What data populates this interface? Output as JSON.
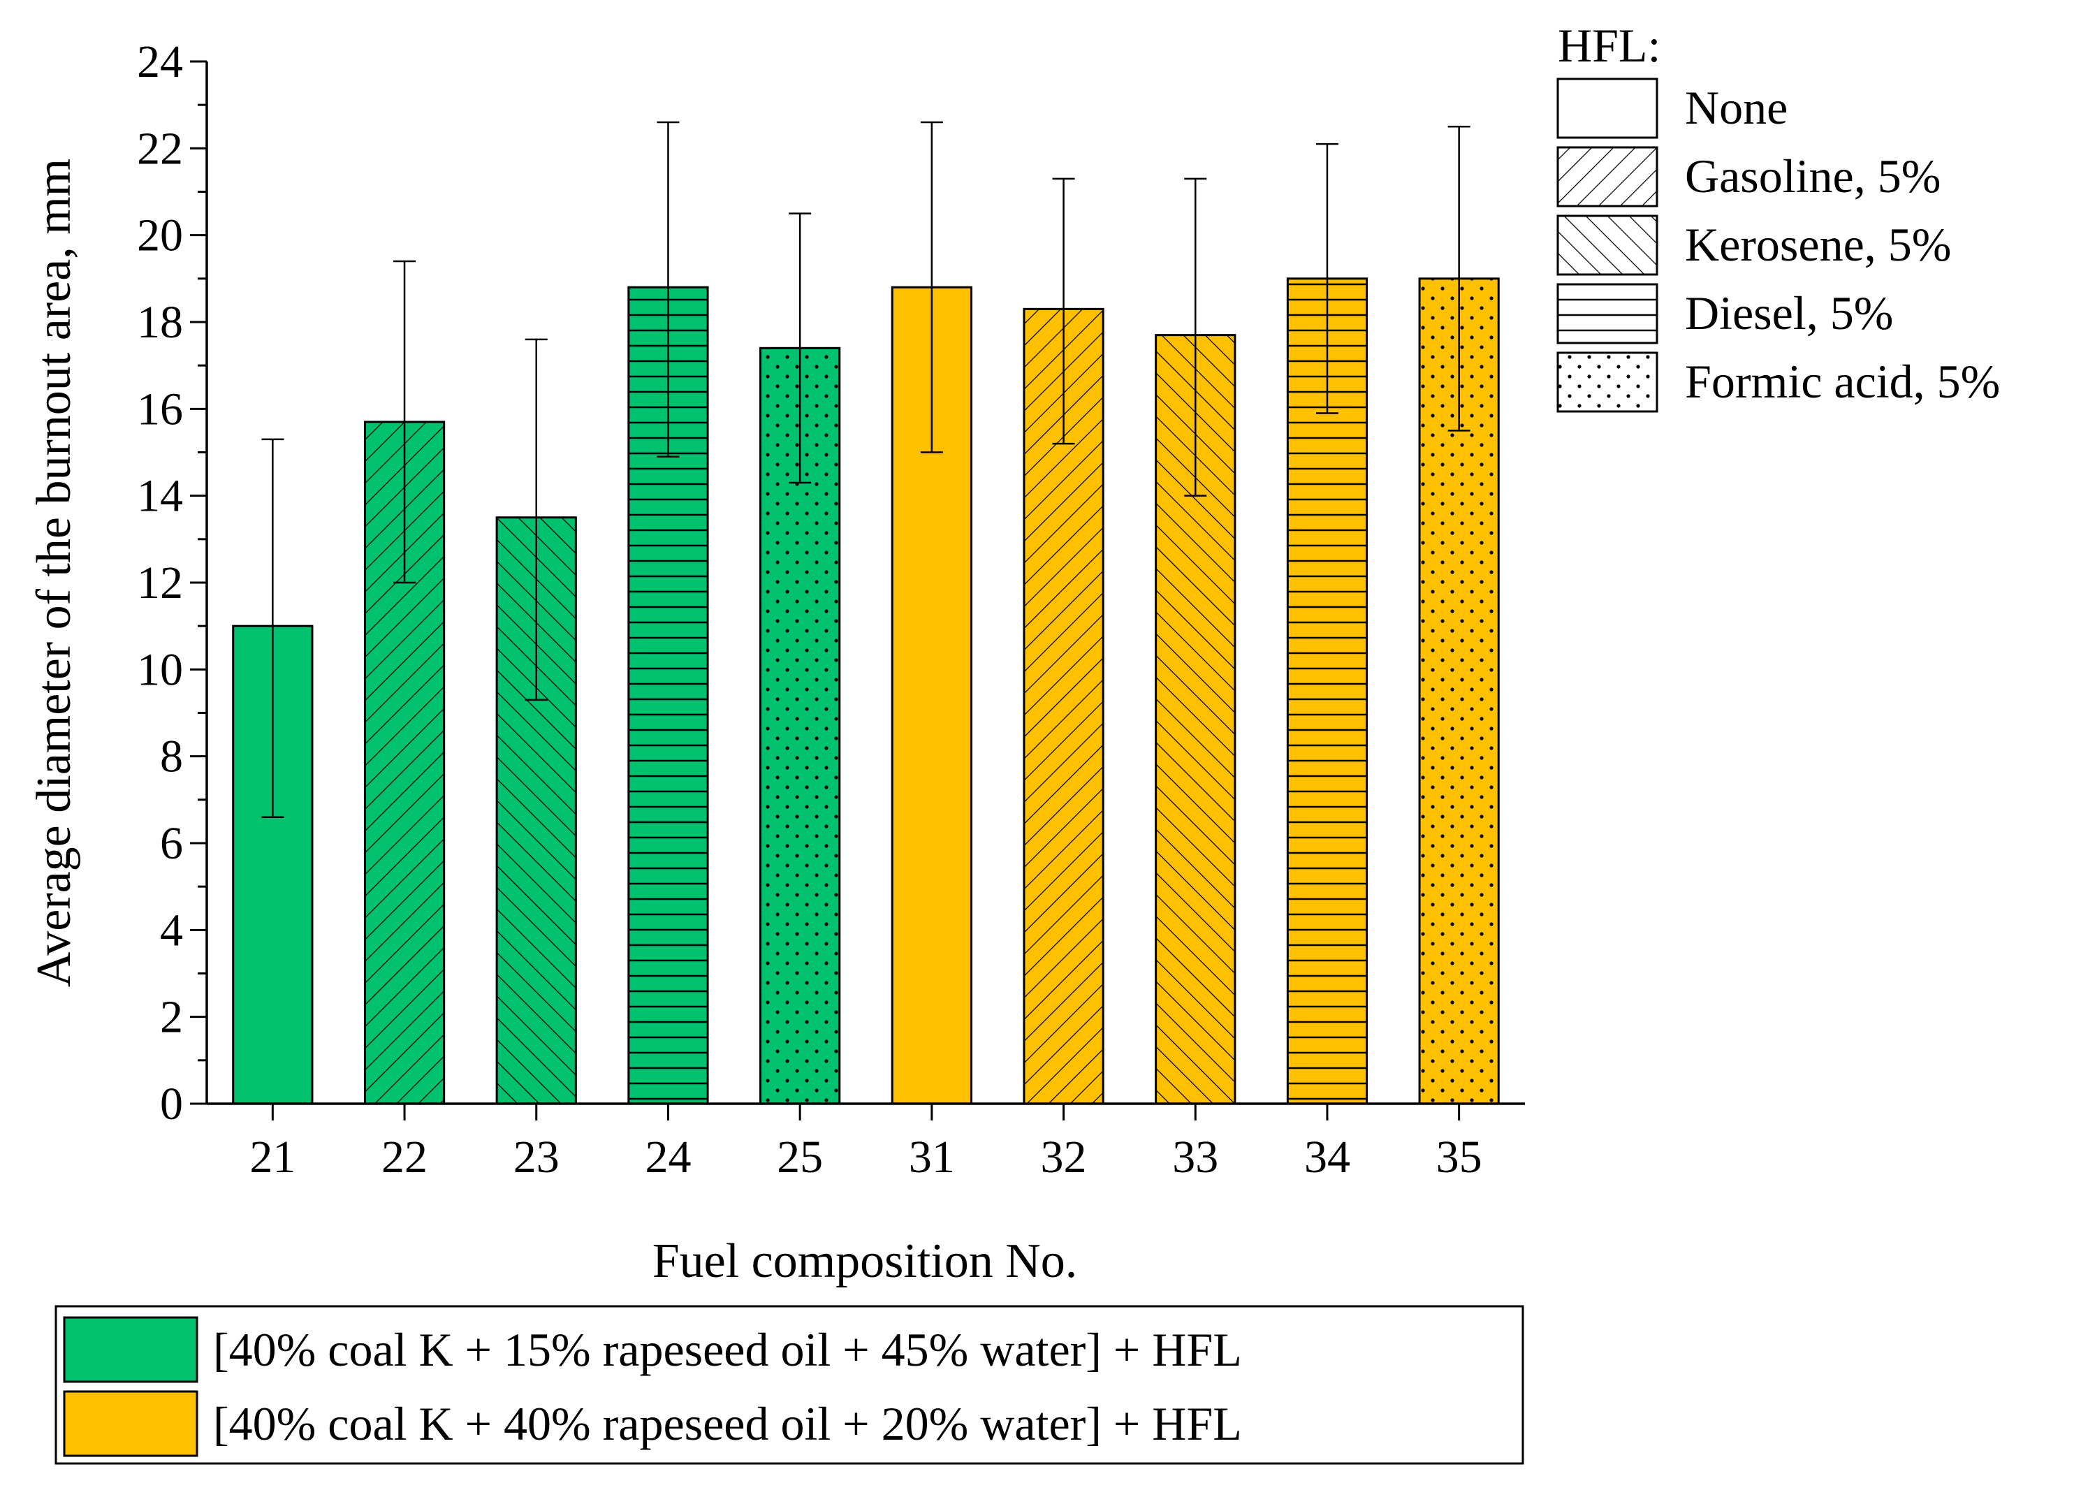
{
  "chart_data": {
    "type": "bar",
    "xlabel": "Fuel composition No.",
    "ylabel": "Average diameter of the burnout area, mm",
    "ylim": [
      0,
      24
    ],
    "yticks": [
      0,
      2,
      4,
      6,
      8,
      10,
      12,
      14,
      16,
      18,
      20,
      22,
      24
    ],
    "categories": [
      "21",
      "22",
      "23",
      "24",
      "25",
      "31",
      "32",
      "33",
      "34",
      "35"
    ],
    "values": [
      11.0,
      15.7,
      13.5,
      18.8,
      17.4,
      18.8,
      18.3,
      17.7,
      19.0,
      19.0
    ],
    "err_low": [
      6.6,
      12.0,
      9.3,
      14.9,
      14.3,
      15.0,
      15.2,
      14.0,
      15.9,
      15.5
    ],
    "err_high": [
      15.3,
      19.4,
      17.6,
      22.6,
      20.5,
      22.6,
      21.3,
      21.3,
      22.1,
      22.5
    ],
    "bar_groups": [
      0,
      0,
      0,
      0,
      0,
      1,
      1,
      1,
      1,
      1
    ],
    "bar_patterns": [
      "none",
      "gasoline",
      "kerosene",
      "diesel",
      "formic",
      "none",
      "gasoline",
      "kerosene",
      "diesel",
      "formic"
    ],
    "hfl_legend": {
      "title": "HFL:",
      "placement": "top-right",
      "items": [
        {
          "pattern": "none",
          "label": "None"
        },
        {
          "pattern": "gasoline",
          "label": "Gasoline, 5%"
        },
        {
          "pattern": "kerosene",
          "label": "Kerosene, 5%"
        },
        {
          "pattern": "diesel",
          "label": "Diesel, 5%"
        },
        {
          "pattern": "formic",
          "label": "Formic acid, 5%"
        }
      ]
    },
    "group_legend": {
      "placement": "bottom",
      "items": [
        {
          "color": "#00c16e",
          "label": "[40% coal K + 15% rapeseed oil + 45% water] + HFL"
        },
        {
          "color": "#ffc000",
          "label": "[40% coal K + 40% rapeseed oil + 20% water] + HFL"
        }
      ]
    },
    "colors": {
      "group_0": "#00c16e",
      "group_1": "#ffc000",
      "outline": "#000000"
    },
    "grid": false
  }
}
